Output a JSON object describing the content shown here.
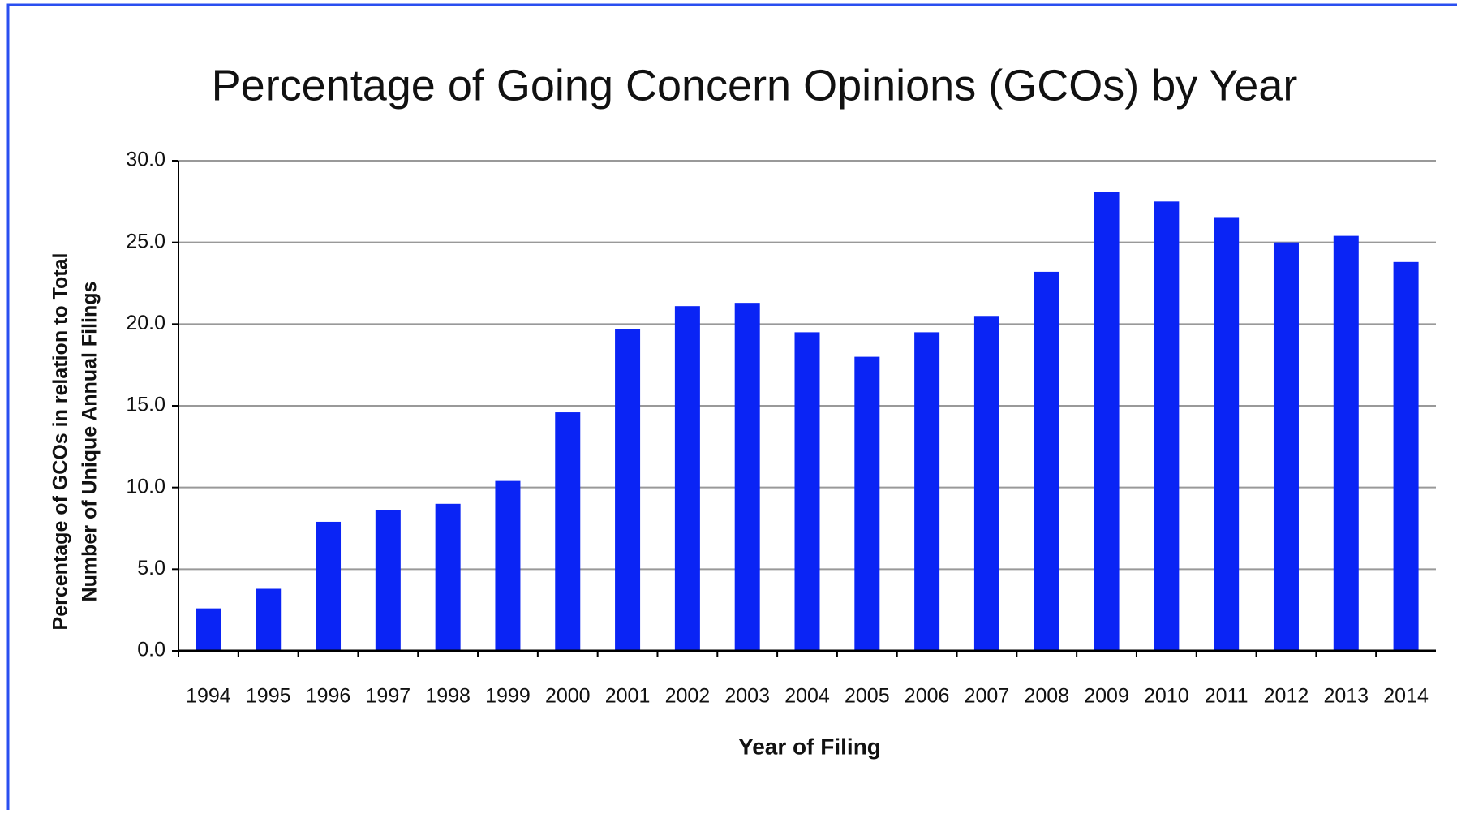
{
  "chart_data": {
    "type": "bar",
    "title": "Percentage of Going Concern Opinions (GCOs) by Year",
    "x_label": "Year of Filing",
    "y_label": [
      "Percentage of GCOs in relation to Total",
      "Number of Unique Annual Filings"
    ],
    "categories": [
      "1994",
      "1995",
      "1996",
      "1997",
      "1998",
      "1999",
      "2000",
      "2001",
      "2002",
      "2003",
      "2004",
      "2005",
      "2006",
      "2007",
      "2008",
      "2009",
      "2010",
      "2011",
      "2012",
      "2013",
      "2014"
    ],
    "values": [
      2.6,
      3.8,
      7.9,
      8.6,
      9.0,
      10.4,
      14.6,
      19.7,
      21.1,
      21.3,
      19.5,
      18.0,
      19.5,
      20.5,
      23.2,
      28.1,
      27.5,
      26.5,
      25.0,
      25.4,
      23.8
    ],
    "color": "#0a24f5",
    "ylim": [
      0,
      30
    ],
    "yticks": [
      {
        "value": 0,
        "label": "0.0"
      },
      {
        "value": 5,
        "label": "5.0"
      },
      {
        "value": 10,
        "label": "10.0"
      },
      {
        "value": 15,
        "label": "15.0"
      },
      {
        "value": 20,
        "label": "20.0"
      },
      {
        "value": 25,
        "label": "25.0"
      },
      {
        "value": 30,
        "label": "30.0"
      }
    ],
    "grid": true
  }
}
